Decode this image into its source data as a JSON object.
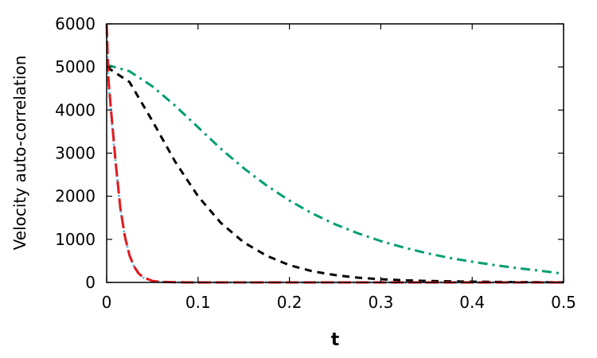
{
  "chart_data": {
    "type": "line",
    "title": "",
    "xlabel": "t",
    "ylabel": "Velocity auto-correlation",
    "xlim": [
      0,
      0.5
    ],
    "ylim": [
      0,
      6000
    ],
    "xticks": [
      "0",
      "0.1",
      "0.2",
      "0.3",
      "0.4",
      "0.5"
    ],
    "yticks": [
      "0",
      "1000",
      "2000",
      "3000",
      "4000",
      "5000",
      "6000"
    ],
    "grid": false,
    "legend": "none",
    "series": [
      {
        "color": "#009e73",
        "style": "dash-dot",
        "x": [
          0,
          0.025,
          0.05,
          0.075,
          0.1,
          0.125,
          0.15,
          0.175,
          0.2,
          0.225,
          0.25,
          0.275,
          0.3,
          0.325,
          0.35,
          0.375,
          0.4,
          0.425,
          0.45,
          0.475,
          0.5
        ],
        "y": [
          5050,
          4900,
          4550,
          4100,
          3600,
          3100,
          2650,
          2250,
          1900,
          1600,
          1350,
          1140,
          960,
          810,
          680,
          570,
          480,
          400,
          330,
          270,
          200
        ]
      },
      {
        "color": "#000000",
        "style": "dashed",
        "x": [
          0,
          0.025,
          0.05,
          0.075,
          0.1,
          0.125,
          0.15,
          0.175,
          0.2,
          0.225,
          0.25,
          0.275,
          0.3,
          0.325,
          0.35,
          0.375,
          0.4,
          0.425,
          0.45,
          0.475,
          0.5
        ],
        "y": [
          5000,
          4650,
          3750,
          2800,
          2000,
          1380,
          930,
          620,
          400,
          260,
          170,
          110,
          75,
          50,
          35,
          25,
          18,
          12,
          8,
          5,
          3
        ]
      },
      {
        "color": "#56b4e9",
        "style": "dotted",
        "x": [
          0,
          0.002,
          0.005,
          0.01,
          0.015,
          0.02,
          0.025,
          0.03,
          0.035,
          0.04,
          0.05,
          0.06,
          0.08,
          0.1,
          0.2,
          0.3,
          0.4,
          0.5
        ],
        "y": [
          5800,
          4600,
          3900,
          2700,
          1700,
          1050,
          620,
          360,
          200,
          110,
          30,
          10,
          2,
          0,
          0,
          0,
          0,
          0
        ]
      },
      {
        "color": "#e31a1c",
        "style": "long-dash",
        "x": [
          0,
          0.002,
          0.005,
          0.01,
          0.015,
          0.02,
          0.025,
          0.03,
          0.035,
          0.04,
          0.05,
          0.06,
          0.08,
          0.1,
          0.2,
          0.3,
          0.4,
          0.5
        ],
        "y": [
          6000,
          4700,
          3950,
          2750,
          1720,
          1060,
          630,
          370,
          210,
          120,
          35,
          12,
          3,
          0,
          0,
          0,
          0,
          0
        ]
      }
    ]
  }
}
